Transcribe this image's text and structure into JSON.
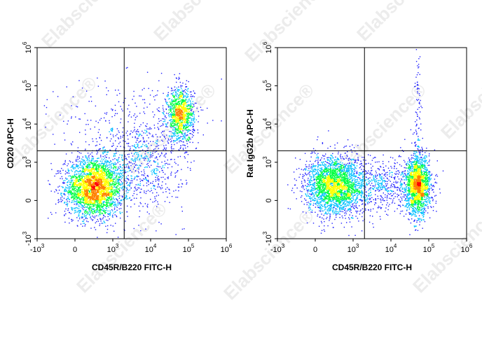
{
  "watermark": "Elabscience",
  "watermark_mark": "®",
  "chart_data": [
    {
      "type": "scatter",
      "xlabel": "CD45R/B220 FITC-H",
      "ylabel": "CD20 APC-H",
      "scale": "biexponential",
      "xlim": [
        -1000,
        1000000
      ],
      "ylim": [
        -1000,
        1000000
      ],
      "gate": {
        "x": 2000,
        "y": 2000
      },
      "x_ticks": [
        {
          "v": -1000,
          "base": "-10",
          "exp": "3"
        },
        {
          "v": 0,
          "base": "0",
          "exp": ""
        },
        {
          "v": 1000,
          "base": "10",
          "exp": "3"
        },
        {
          "v": 10000,
          "base": "10",
          "exp": "4"
        },
        {
          "v": 100000,
          "base": "10",
          "exp": "5"
        },
        {
          "v": 1000000,
          "base": "10",
          "exp": "6"
        }
      ],
      "y_ticks": [
        {
          "v": -1000,
          "base": "-10",
          "exp": "3"
        },
        {
          "v": 0,
          "base": "0",
          "exp": ""
        },
        {
          "v": 1000,
          "base": "10",
          "exp": "3"
        },
        {
          "v": 10000,
          "base": "10",
          "exp": "4"
        },
        {
          "v": 100000,
          "base": "10",
          "exp": "5"
        },
        {
          "v": 1000000,
          "base": "10",
          "exp": "6"
        }
      ],
      "populations": [
        {
          "cx": 500,
          "cy": 350,
          "spread_x": 0.38,
          "spread_y": 0.38,
          "weight": 0.6
        },
        {
          "cx": 60000,
          "cy": 18000,
          "spread_x": 0.18,
          "spread_y": 0.35,
          "weight": 0.22
        },
        {
          "cx": 6000,
          "cy": 900,
          "spread_x": 0.55,
          "spread_y": 0.6,
          "weight": 0.12
        },
        {
          "cx": 2500,
          "cy": 8000,
          "spread_x": 0.9,
          "spread_y": 0.7,
          "weight": 0.06
        }
      ],
      "colors": [
        "#1f1fff",
        "#00c0ff",
        "#00ff40",
        "#ffff00",
        "#ff8000",
        "#ff0000"
      ]
    },
    {
      "type": "scatter",
      "xlabel": "CD45R/B220 FITC-H",
      "ylabel": "Rat IgG2b APC-H",
      "scale": "biexponential",
      "xlim": [
        -1000,
        1000000
      ],
      "ylim": [
        -1000,
        1000000
      ],
      "gate": {
        "x": 2000,
        "y": 2000
      },
      "x_ticks": [
        {
          "v": -1000,
          "base": "-10",
          "exp": "3"
        },
        {
          "v": 0,
          "base": "0",
          "exp": ""
        },
        {
          "v": 1000,
          "base": "10",
          "exp": "3"
        },
        {
          "v": 10000,
          "base": "10",
          "exp": "4"
        },
        {
          "v": 100000,
          "base": "10",
          "exp": "5"
        },
        {
          "v": 1000000,
          "base": "10",
          "exp": "6"
        }
      ],
      "y_ticks": [
        {
          "v": -1000,
          "base": "-10",
          "exp": "3"
        },
        {
          "v": 0,
          "base": "0",
          "exp": ""
        },
        {
          "v": 1000,
          "base": "10",
          "exp": "3"
        },
        {
          "v": 10000,
          "base": "10",
          "exp": "4"
        },
        {
          "v": 100000,
          "base": "10",
          "exp": "5"
        },
        {
          "v": 1000000,
          "base": "10",
          "exp": "6"
        }
      ],
      "populations": [
        {
          "cx": 500,
          "cy": 400,
          "spread_x": 0.38,
          "spread_y": 0.38,
          "weight": 0.5
        },
        {
          "cx": 50000,
          "cy": 400,
          "spread_x": 0.16,
          "spread_y": 0.38,
          "weight": 0.36
        },
        {
          "cx": 5000,
          "cy": 400,
          "spread_x": 0.6,
          "spread_y": 0.35,
          "weight": 0.12
        },
        {
          "cx": 50000,
          "cy": 20000,
          "spread_x": 0.05,
          "spread_y": 1.0,
          "weight": 0.02
        }
      ],
      "colors": [
        "#1f1fff",
        "#00c0ff",
        "#00ff40",
        "#ffff00",
        "#ff8000",
        "#ff0000"
      ]
    }
  ]
}
